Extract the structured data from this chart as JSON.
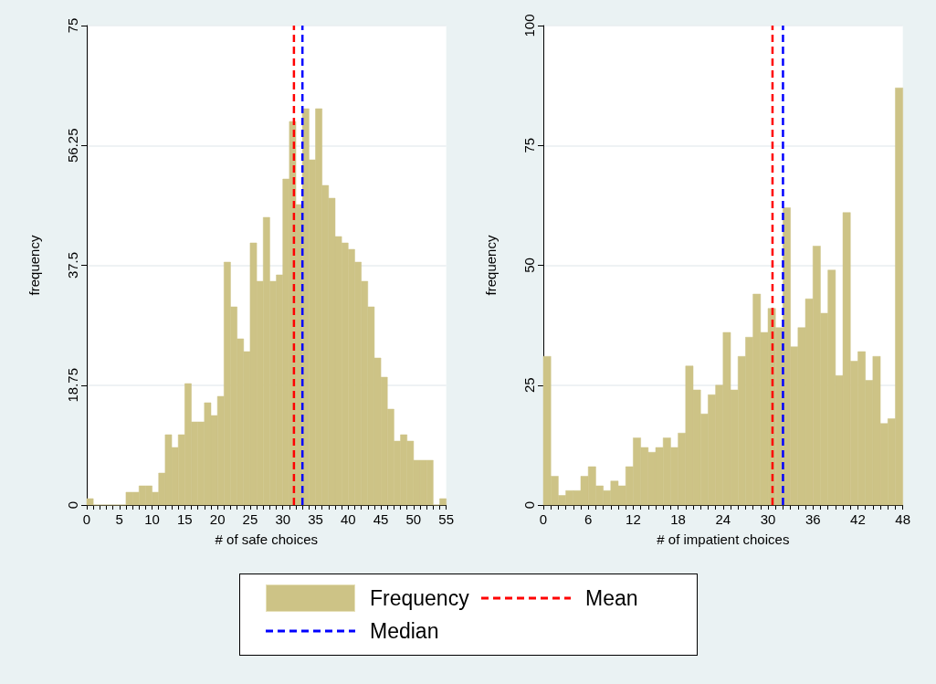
{
  "chart_data": [
    {
      "type": "histogram",
      "xlabel": "# of safe choices",
      "ylabel": "frequency",
      "bins": [
        0,
        1,
        2,
        3,
        4,
        5,
        6,
        7,
        8,
        9,
        10,
        11,
        12,
        13,
        14,
        15,
        16,
        17,
        18,
        19,
        20,
        21,
        22,
        23,
        24,
        25,
        26,
        27,
        28,
        29,
        30,
        31,
        32,
        33,
        34,
        35,
        36,
        37,
        38,
        39,
        40,
        41,
        42,
        43,
        44,
        45,
        46,
        47,
        48,
        49,
        50,
        51,
        52,
        53,
        54,
        55
      ],
      "series": [
        {
          "name": "Frequency",
          "color": "#cdc386",
          "values": [
            1,
            0,
            0,
            0,
            0,
            0,
            2,
            2,
            3,
            3,
            2,
            5,
            11,
            9,
            11,
            19,
            13,
            13,
            16,
            14,
            17,
            38,
            31,
            26,
            24,
            41,
            35,
            45,
            35,
            36,
            51,
            60,
            47,
            62,
            54,
            62,
            50,
            48,
            42,
            41,
            40,
            38,
            35,
            31,
            23,
            20,
            15,
            10,
            11,
            10,
            7,
            7,
            7,
            0,
            1
          ]
        }
      ],
      "xlim": [
        0,
        55
      ],
      "xticks": [
        0,
        {
          "value": 1,
          "label": null
        },
        {
          "value": 2,
          "label": null
        },
        {
          "value": 3,
          "label": null
        },
        {
          "value": 4,
          "label": null
        },
        5,
        {
          "value": 6,
          "label": null
        },
        {
          "value": 7,
          "label": null
        },
        {
          "value": 8,
          "label": null
        },
        {
          "value": 9,
          "label": null
        },
        10,
        {
          "value": 11,
          "label": null
        },
        {
          "value": 12,
          "label": null
        },
        {
          "value": 13,
          "label": null
        },
        {
          "value": 14,
          "label": null
        },
        15,
        {
          "value": 16,
          "label": null
        },
        {
          "value": 17,
          "label": null
        },
        {
          "value": 18,
          "label": null
        },
        {
          "value": 19,
          "label": null
        },
        20,
        {
          "value": 21,
          "label": null
        },
        {
          "value": 22,
          "label": null
        },
        {
          "value": 23,
          "label": null
        },
        {
          "value": 24,
          "label": null
        },
        25,
        {
          "value": 26,
          "label": null
        },
        {
          "value": 27,
          "label": null
        },
        {
          "value": 28,
          "label": null
        },
        {
          "value": 29,
          "label": null
        },
        30,
        {
          "value": 31,
          "label": null
        },
        {
          "value": 32,
          "label": null
        },
        {
          "value": 33,
          "label": null
        },
        {
          "value": 34,
          "label": null
        },
        35,
        {
          "value": 36,
          "label": null
        },
        {
          "value": 37,
          "label": null
        },
        {
          "value": 38,
          "label": null
        },
        {
          "value": 39,
          "label": null
        },
        40,
        {
          "value": 41,
          "label": null
        },
        {
          "value": 42,
          "label": null
        },
        {
          "value": 43,
          "label": null
        },
        {
          "value": 44,
          "label": null
        },
        45,
        {
          "value": 46,
          "label": null
        },
        {
          "value": 47,
          "label": null
        },
        {
          "value": 48,
          "label": null
        },
        {
          "value": 49,
          "label": null
        },
        50,
        {
          "value": 51,
          "label": null
        },
        {
          "value": 52,
          "label": null
        },
        {
          "value": 53,
          "label": null
        },
        {
          "value": 54,
          "label": null
        },
        55
      ],
      "ylim": [
        0,
        75
      ],
      "yticks": [
        0,
        18.75,
        37.5,
        56.25,
        75
      ],
      "grid": "y",
      "legend": "bottom",
      "ref_lines": [
        {
          "axis": "x",
          "value": 31.7,
          "label": "Mean",
          "color": "#ff0000",
          "line_style": "dashed"
        },
        {
          "axis": "x",
          "value": 33,
          "label": "Median",
          "color": "#0000ff",
          "line_style": "dashed"
        }
      ]
    },
    {
      "type": "histogram",
      "xlabel": "# of impatient choices",
      "ylabel": "frequency",
      "bins": [
        0,
        1,
        2,
        3,
        4,
        5,
        6,
        7,
        8,
        9,
        10,
        11,
        12,
        13,
        14,
        15,
        16,
        17,
        18,
        19,
        20,
        21,
        22,
        23,
        24,
        25,
        26,
        27,
        28,
        29,
        30,
        31,
        32,
        33,
        34,
        35,
        36,
        37,
        38,
        39,
        40,
        41,
        42,
        43,
        44,
        45,
        46,
        47,
        48
      ],
      "series": [
        {
          "name": "Frequency",
          "color": "#cdc386",
          "values": [
            31,
            6,
            2,
            3,
            3,
            6,
            8,
            4,
            3,
            5,
            4,
            8,
            14,
            12,
            11,
            12,
            14,
            12,
            15,
            29,
            24,
            19,
            23,
            25,
            36,
            24,
            31,
            35,
            44,
            36,
            41,
            37,
            62,
            33,
            37,
            43,
            54,
            40,
            49,
            27,
            61,
            30,
            32,
            26,
            31,
            17,
            18,
            87
          ]
        }
      ],
      "xlim": [
        0,
        48
      ],
      "xticks": [
        0,
        {
          "value": 1,
          "label": null
        },
        {
          "value": 2,
          "label": null
        },
        {
          "value": 3,
          "label": null
        },
        {
          "value": 4,
          "label": null
        },
        {
          "value": 5,
          "label": null
        },
        6,
        {
          "value": 7,
          "label": null
        },
        {
          "value": 8,
          "label": null
        },
        {
          "value": 9,
          "label": null
        },
        {
          "value": 10,
          "label": null
        },
        {
          "value": 11,
          "label": null
        },
        12,
        {
          "value": 13,
          "label": null
        },
        {
          "value": 14,
          "label": null
        },
        {
          "value": 15,
          "label": null
        },
        {
          "value": 16,
          "label": null
        },
        {
          "value": 17,
          "label": null
        },
        18,
        {
          "value": 19,
          "label": null
        },
        {
          "value": 20,
          "label": null
        },
        {
          "value": 21,
          "label": null
        },
        {
          "value": 22,
          "label": null
        },
        {
          "value": 23,
          "label": null
        },
        24,
        {
          "value": 25,
          "label": null
        },
        {
          "value": 26,
          "label": null
        },
        {
          "value": 27,
          "label": null
        },
        {
          "value": 28,
          "label": null
        },
        {
          "value": 29,
          "label": null
        },
        30,
        {
          "value": 31,
          "label": null
        },
        {
          "value": 32,
          "label": null
        },
        {
          "value": 33,
          "label": null
        },
        {
          "value": 34,
          "label": null
        },
        {
          "value": 35,
          "label": null
        },
        36,
        {
          "value": 37,
          "label": null
        },
        {
          "value": 38,
          "label": null
        },
        {
          "value": 39,
          "label": null
        },
        {
          "value": 40,
          "label": null
        },
        {
          "value": 41,
          "label": null
        },
        42,
        {
          "value": 43,
          "label": null
        },
        {
          "value": 44,
          "label": null
        },
        {
          "value": 45,
          "label": null
        },
        {
          "value": 46,
          "label": null
        },
        {
          "value": 47,
          "label": null
        },
        48
      ],
      "ylim": [
        0,
        100
      ],
      "yticks": [
        0,
        25,
        50,
        75,
        100
      ],
      "grid": "y",
      "legend": "bottom",
      "ref_lines": [
        {
          "axis": "x",
          "value": 30.6,
          "color": "#ff0000",
          "line_style": "dashed"
        },
        {
          "axis": "x",
          "value": 32,
          "color": "#0000ff",
          "line_style": "dashed"
        }
      ]
    }
  ]
}
